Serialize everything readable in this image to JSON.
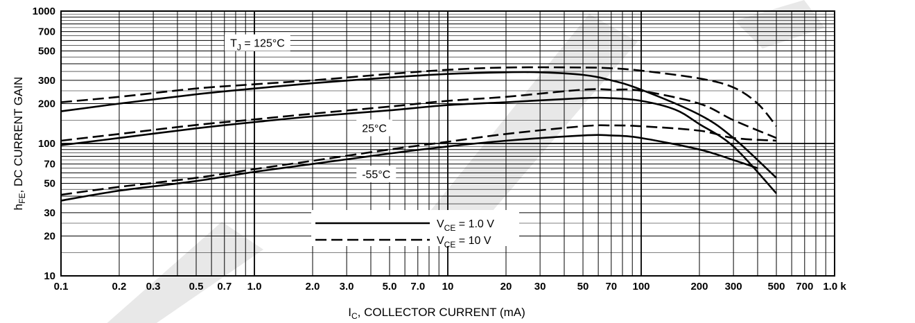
{
  "chart_data": {
    "type": "line",
    "xlabel": {
      "main": "I",
      "sub": "C",
      "rest": ", COLLECTOR CURRENT (mA)"
    },
    "ylabel": {
      "main": "h",
      "sub": "FE",
      "rest": ", DC CURRENT GAIN"
    },
    "xscale": "log",
    "yscale": "log",
    "xlim": [
      0.1,
      1000
    ],
    "ylim": [
      10,
      1000
    ],
    "grid": true,
    "x_tick_labels": [
      {
        "v": 0.1,
        "t": "0.1"
      },
      {
        "v": 0.2,
        "t": "0.2"
      },
      {
        "v": 0.3,
        "t": "0.3"
      },
      {
        "v": 0.5,
        "t": "0.5"
      },
      {
        "v": 0.7,
        "t": "0.7"
      },
      {
        "v": 1,
        "t": "1.0"
      },
      {
        "v": 2,
        "t": "2.0"
      },
      {
        "v": 3,
        "t": "3.0"
      },
      {
        "v": 5,
        "t": "5.0"
      },
      {
        "v": 7,
        "t": "7.0"
      },
      {
        "v": 10,
        "t": "10"
      },
      {
        "v": 20,
        "t": "20"
      },
      {
        "v": 30,
        "t": "30"
      },
      {
        "v": 50,
        "t": "50"
      },
      {
        "v": 70,
        "t": "70"
      },
      {
        "v": 100,
        "t": "100"
      },
      {
        "v": 200,
        "t": "200"
      },
      {
        "v": 300,
        "t": "300"
      },
      {
        "v": 500,
        "t": "500"
      },
      {
        "v": 700,
        "t": "700"
      },
      {
        "v": 1000,
        "t": "1.0 k"
      }
    ],
    "y_tick_labels": [
      {
        "v": 10,
        "t": "10"
      },
      {
        "v": 20,
        "t": "20"
      },
      {
        "v": 30,
        "t": "30"
      },
      {
        "v": 50,
        "t": "50"
      },
      {
        "v": 70,
        "t": "70"
      },
      {
        "v": 100,
        "t": "100"
      },
      {
        "v": 200,
        "t": "200"
      },
      {
        "v": 300,
        "t": "300"
      },
      {
        "v": 500,
        "t": "500"
      },
      {
        "v": 700,
        "t": "700"
      },
      {
        "v": 1000,
        "t": "1000"
      }
    ],
    "annotations": [
      {
        "id": "tj125",
        "main": "T",
        "sub": "J",
        "rest": " = 125°C",
        "x": 0.75,
        "y": 550
      },
      {
        "id": "t25",
        "main": "25°C",
        "sub": "",
        "rest": "",
        "x": 3.6,
        "y": 125
      },
      {
        "id": "tm55",
        "main": "-55°C",
        "sub": "",
        "rest": "",
        "x": 3.6,
        "y": 56
      }
    ],
    "legend": {
      "placement": "lower-center",
      "entries": [
        {
          "style": "solid",
          "main": "V",
          "sub": "CE",
          "rest": " = 1.0 V"
        },
        {
          "style": "dashed",
          "main": "V",
          "sub": "CE",
          "rest": " = 10 V"
        }
      ]
    },
    "series": [
      {
        "style": "solid",
        "x": [
          0.1,
          0.2,
          0.5,
          1,
          2,
          5,
          10,
          20,
          30,
          50,
          70,
          100,
          200,
          300,
          500
        ],
        "y": [
          175,
          200,
          235,
          260,
          285,
          315,
          335,
          345,
          345,
          330,
          300,
          255,
          165,
          110,
          55
        ]
      },
      {
        "style": "dashed",
        "x": [
          0.1,
          0.2,
          0.5,
          1,
          2,
          5,
          10,
          20,
          50,
          70,
          100,
          200,
          300,
          400,
          500
        ],
        "y": [
          205,
          225,
          260,
          280,
          300,
          335,
          360,
          375,
          375,
          370,
          355,
          310,
          265,
          200,
          135
        ]
      },
      {
        "style": "solid",
        "x": [
          0.1,
          0.2,
          0.5,
          1,
          2,
          5,
          10,
          20,
          50,
          70,
          100,
          150,
          200,
          300,
          500
        ],
        "y": [
          97,
          110,
          130,
          145,
          160,
          178,
          195,
          205,
          220,
          220,
          210,
          180,
          140,
          95,
          42
        ]
      },
      {
        "style": "dashed",
        "x": [
          0.1,
          0.2,
          0.5,
          1,
          2,
          5,
          10,
          20,
          50,
          70,
          100,
          200,
          300,
          500
        ],
        "y": [
          105,
          118,
          138,
          152,
          168,
          190,
          210,
          225,
          255,
          255,
          250,
          200,
          150,
          110
        ]
      },
      {
        "style": "solid",
        "x": [
          0.1,
          0.2,
          0.5,
          1,
          2,
          5,
          10,
          20,
          50,
          70,
          100,
          200,
          300,
          400
        ],
        "y": [
          37,
          44,
          52,
          61,
          70,
          84,
          95,
          105,
          115,
          115,
          110,
          90,
          75,
          65
        ]
      },
      {
        "style": "dashed",
        "x": [
          0.1,
          0.2,
          0.5,
          1,
          2,
          5,
          10,
          20,
          50,
          70,
          100,
          200,
          300,
          500
        ],
        "y": [
          41,
          47,
          55,
          64,
          74,
          90,
          103,
          118,
          135,
          137,
          135,
          125,
          110,
          105
        ]
      }
    ]
  }
}
